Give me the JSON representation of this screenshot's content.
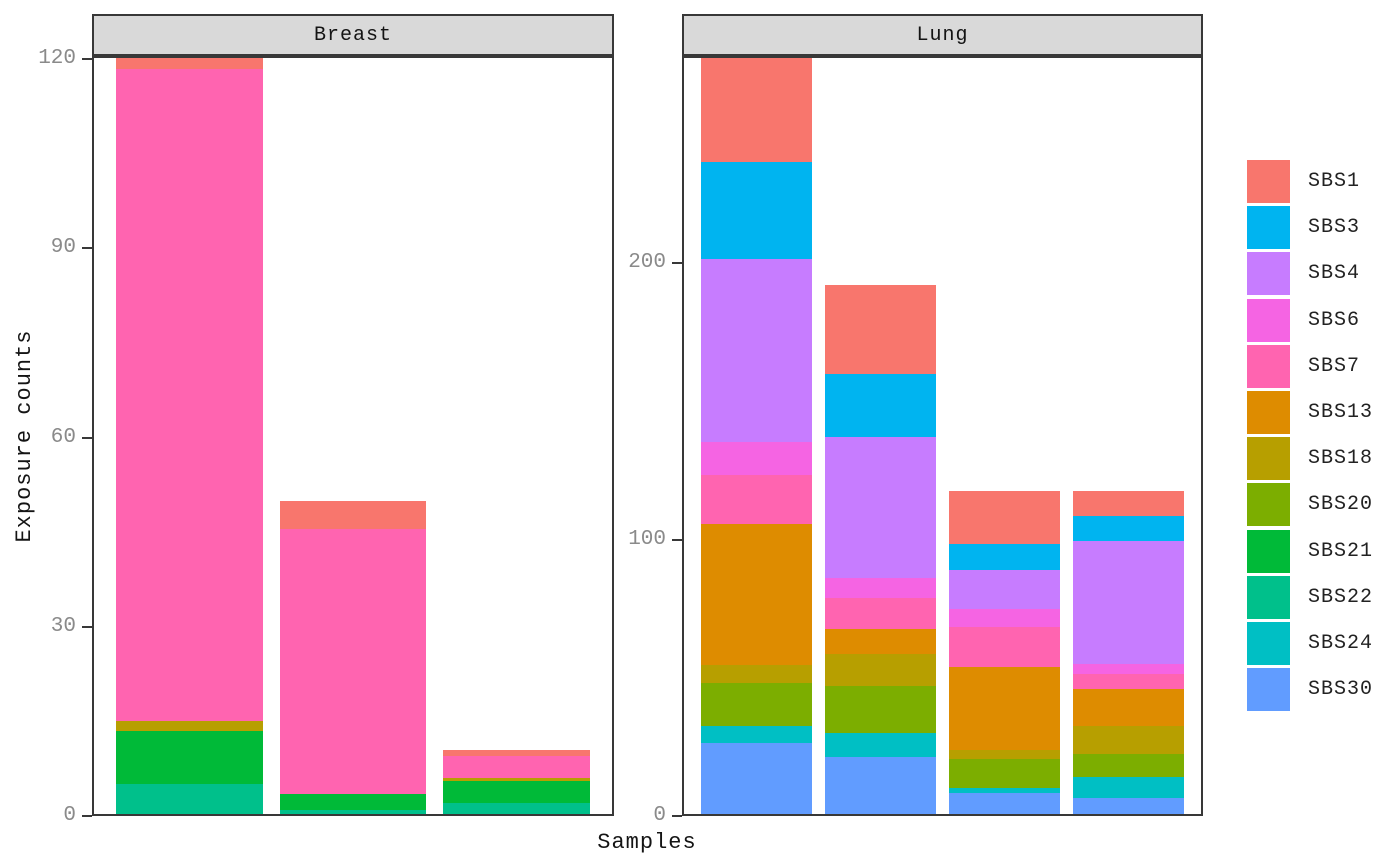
{
  "chart_data": {
    "type": "bar",
    "stacked": true,
    "title": "",
    "xlabel": "Samples",
    "ylabel": "Exposure counts",
    "legend_position": "right",
    "grid": false,
    "facet_titles": [
      "Breast",
      "Lung"
    ],
    "legend": [
      {
        "label": "SBS1",
        "color": "#F8766D"
      },
      {
        "label": "SBS3",
        "color": "#00B4F0"
      },
      {
        "label": "SBS4",
        "color": "#C77CFF"
      },
      {
        "label": "SBS6",
        "color": "#F564E3"
      },
      {
        "label": "SBS7",
        "color": "#FF64B0"
      },
      {
        "label": "SBS13",
        "color": "#DE8C00"
      },
      {
        "label": "SBS18",
        "color": "#B79F00"
      },
      {
        "label": "SBS20",
        "color": "#7CAE00"
      },
      {
        "label": "SBS21",
        "color": "#00BA38"
      },
      {
        "label": "SBS22",
        "color": "#00C08B"
      },
      {
        "label": "SBS24",
        "color": "#00BFC4"
      },
      {
        "label": "SBS30",
        "color": "#619CFF"
      }
    ],
    "stack_order_bottom_to_top": [
      "SBS30",
      "SBS24",
      "SBS22",
      "SBS21",
      "SBS20",
      "SBS18",
      "SBS13",
      "SBS7",
      "SBS6",
      "SBS4",
      "SBS3",
      "SBS1"
    ],
    "facets": [
      {
        "name": "Breast",
        "ylim": [
          0,
          120.5
        ],
        "yticks": [
          0,
          30,
          60,
          90,
          120
        ],
        "samples": [
          {
            "SBS22": 5,
            "SBS21": 8.5,
            "SBS18": 1.5,
            "SBS7": 103.5,
            "SBS1": 2
          },
          {
            "SBS22": 1,
            "SBS21": 2.5,
            "SBS7": 42,
            "SBS1": 4.5
          },
          {
            "SBS22": 2,
            "SBS21": 3.5,
            "SBS18": 0.5,
            "SBS7": 3.5,
            "SBS1": 1
          }
        ]
      },
      {
        "name": "Lung",
        "ylim": [
          0,
          275
        ],
        "yticks": [
          0,
          100,
          200
        ],
        "samples": [
          {
            "SBS30": 26.5,
            "SBS24": 6,
            "SBS20": 15.5,
            "SBS18": 6.5,
            "SBS13": 51,
            "SBS7": 18,
            "SBS6": 12,
            "SBS4": 66,
            "SBS3": 35,
            "SBS1": 38.5
          },
          {
            "SBS30": 21.5,
            "SBS24": 8.5,
            "SBS20": 17,
            "SBS18": 11.5,
            "SBS13": 9,
            "SBS7": 11.5,
            "SBS6": 7,
            "SBS4": 51,
            "SBS3": 23,
            "SBS1": 32
          },
          {
            "SBS30": 8.5,
            "SBS24": 1.5,
            "SBS20": 10.5,
            "SBS18": 3.5,
            "SBS13": 30,
            "SBS7": 14.5,
            "SBS6": 6.5,
            "SBS4": 14,
            "SBS3": 9.5,
            "SBS1": 19
          },
          {
            "SBS30": 6.5,
            "SBS24": 7.5,
            "SBS20": 8.5,
            "SBS18": 10,
            "SBS13": 13.5,
            "SBS7": 5.5,
            "SBS6": 3.5,
            "SBS4": 44.5,
            "SBS3": 9,
            "SBS1": 9
          }
        ]
      }
    ]
  }
}
